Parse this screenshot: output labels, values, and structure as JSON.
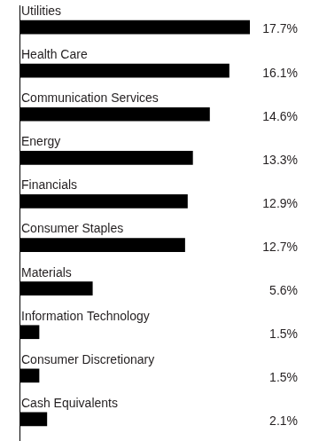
{
  "chart_data": {
    "type": "bar",
    "orientation": "horizontal",
    "categories": [
      "Utilities",
      "Health Care",
      "Communication Services",
      "Energy",
      "Financials",
      "Consumer Staples",
      "Materials",
      "Information Technology",
      "Consumer Discretionary",
      "Cash Equivalents"
    ],
    "values": [
      17.7,
      16.1,
      14.6,
      13.3,
      12.9,
      12.7,
      5.6,
      1.5,
      1.5,
      2.1
    ],
    "value_labels": [
      "17.7%",
      "16.1%",
      "14.6%",
      "13.3%",
      "12.9%",
      "12.7%",
      "5.6%",
      "1.5%",
      "1.5%",
      "2.1%"
    ],
    "color": "#000000",
    "data_labels": true,
    "tick_labels": false,
    "grid": false
  }
}
